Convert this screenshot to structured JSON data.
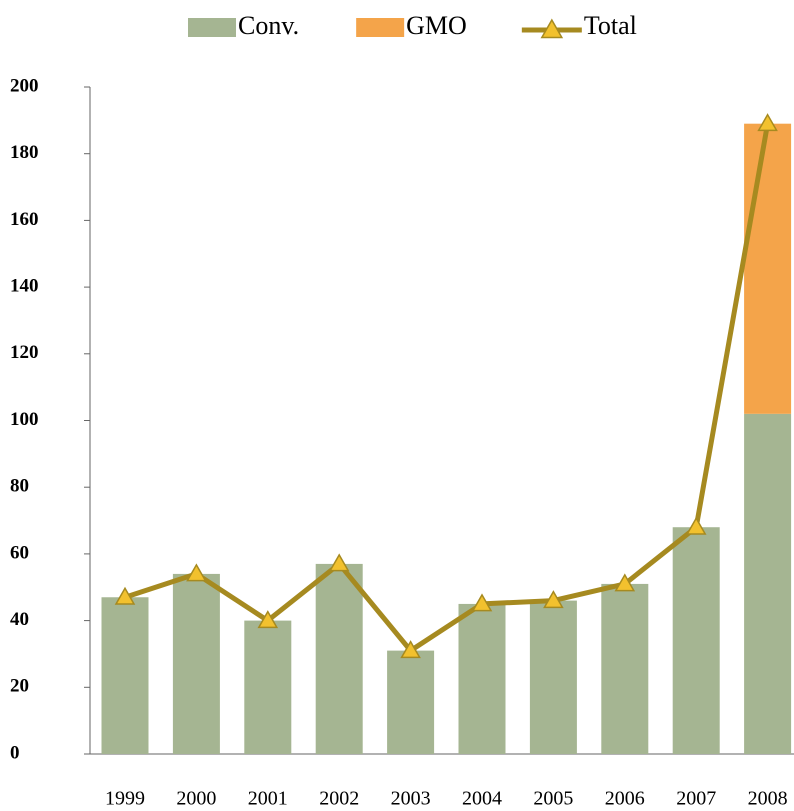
{
  "chart_data": {
    "type": "bar",
    "stacked": true,
    "categories": [
      "1999",
      "2000",
      "2001",
      "2002",
      "2003",
      "2004",
      "2005",
      "2006",
      "2007",
      "2008"
    ],
    "series": [
      {
        "name": "Conv.",
        "type": "bar",
        "color": "#a5b592",
        "values": [
          47,
          54,
          40,
          57,
          31,
          45,
          46,
          51,
          68,
          102
        ]
      },
      {
        "name": "GMO",
        "type": "bar",
        "color": "#f4a44a",
        "values": [
          0,
          0,
          0,
          0,
          0,
          0,
          0,
          0,
          0,
          87
        ]
      },
      {
        "name": "Total",
        "type": "line",
        "color": "#a68a20",
        "marker_color": "#f2c12e",
        "values": [
          47,
          54,
          40,
          57,
          31,
          45,
          46,
          51,
          68,
          189
        ]
      }
    ],
    "ylim": [
      0,
      200
    ],
    "yticks": [
      0,
      20,
      40,
      60,
      80,
      100,
      120,
      140,
      160,
      180,
      200
    ],
    "legend": "top"
  }
}
